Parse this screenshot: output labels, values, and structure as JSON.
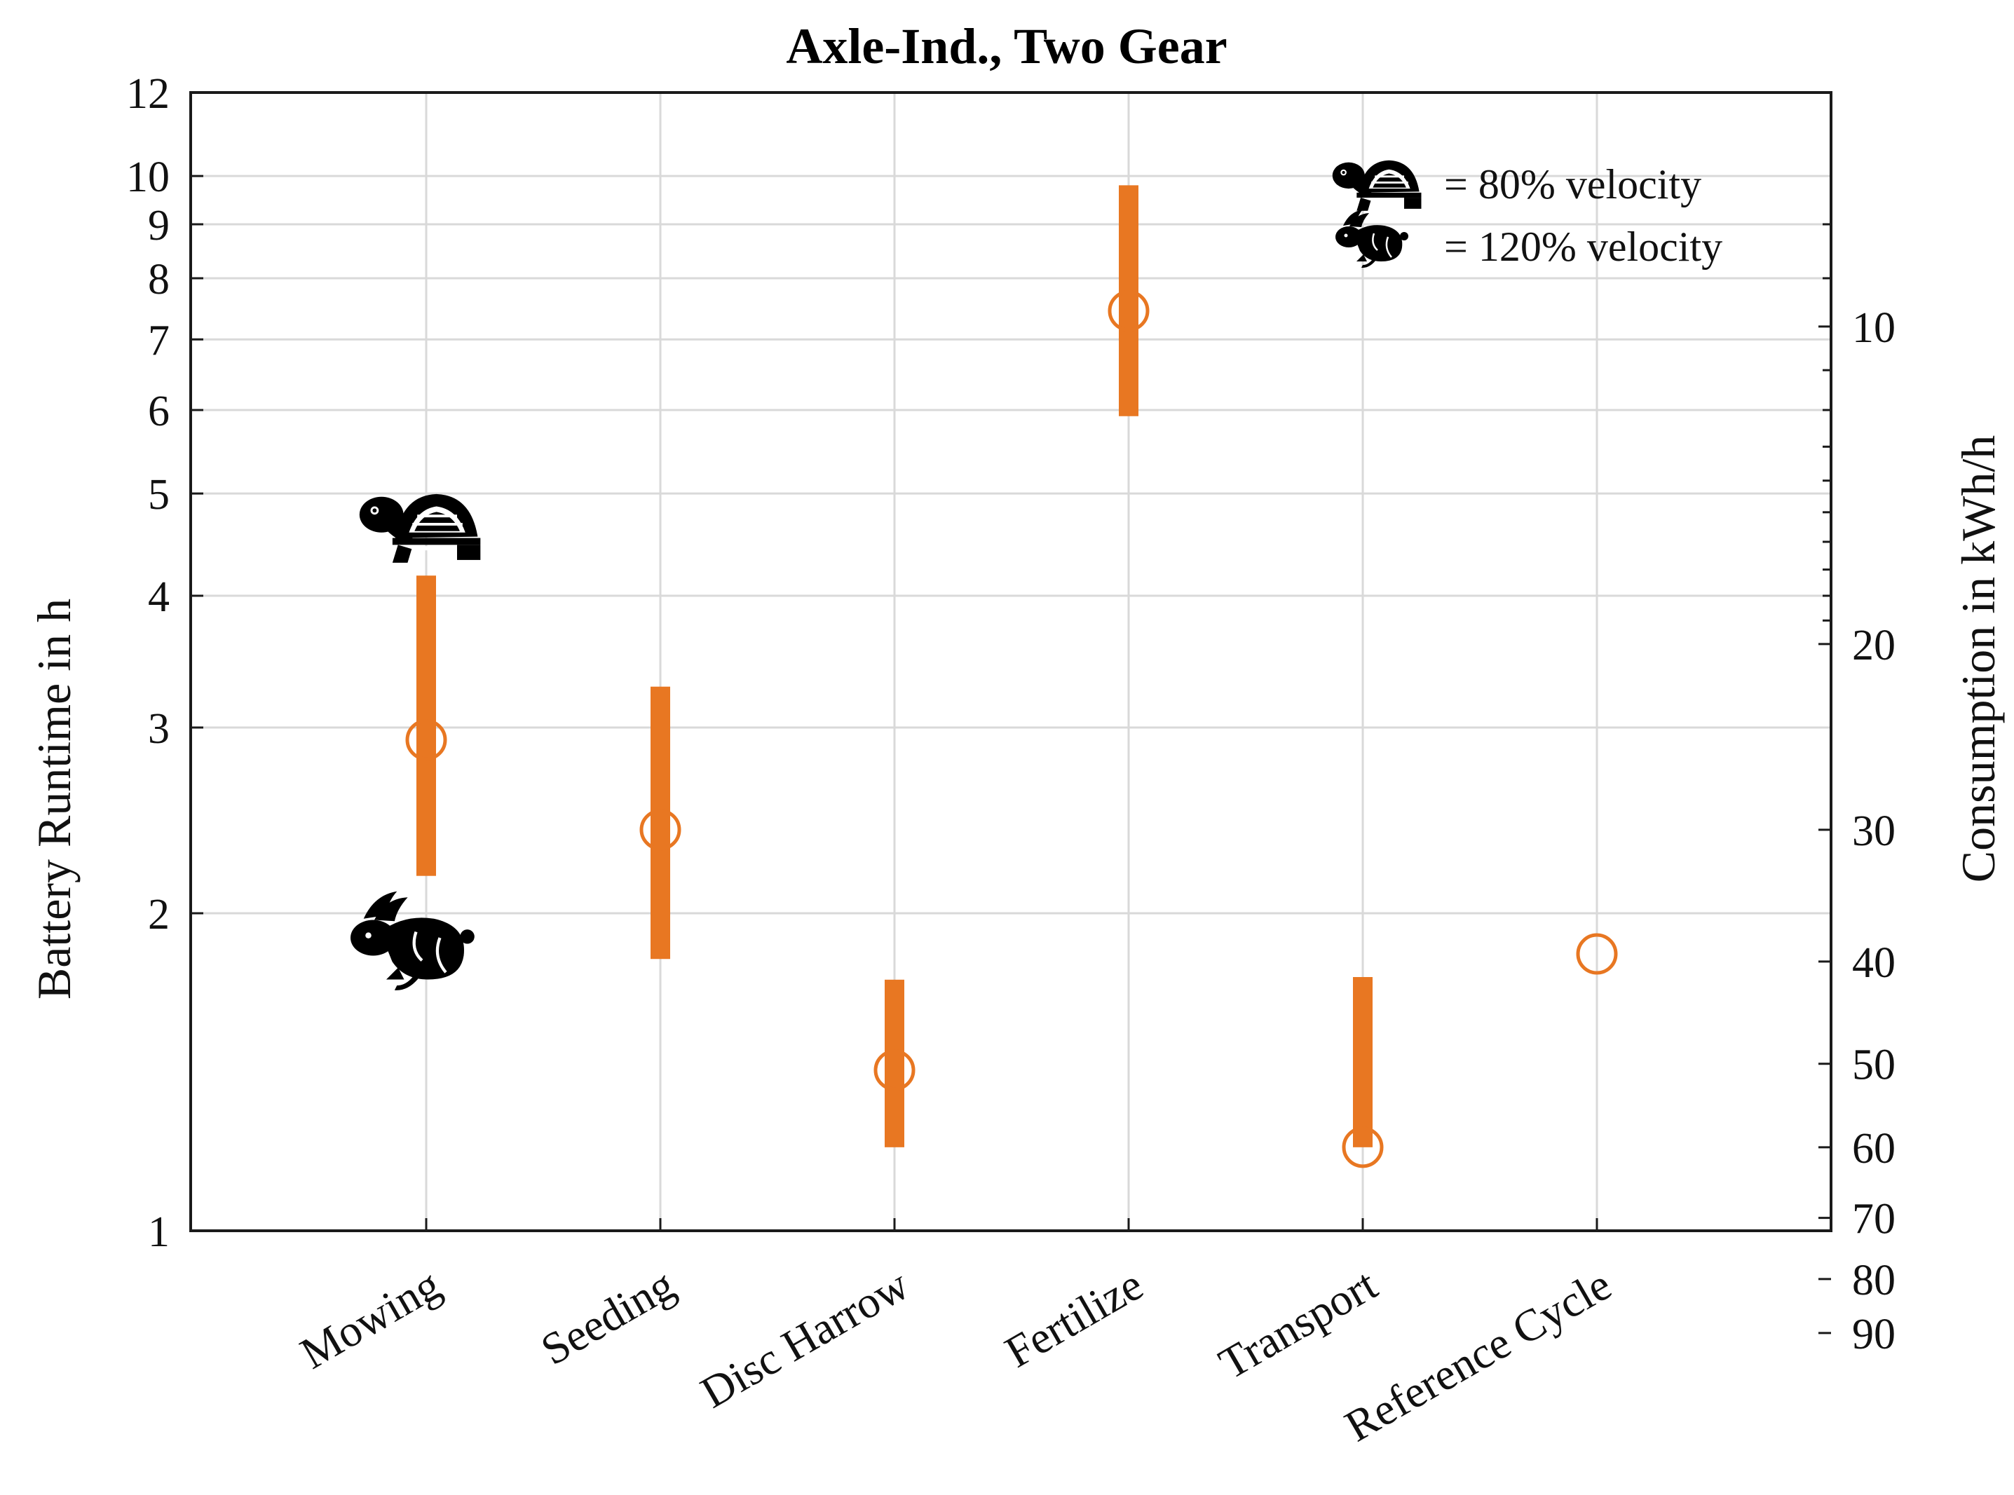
{
  "chart_data": {
    "type": "scatter",
    "title": "Axle-Ind., Two Gear",
    "ylabel": "Battery Runtime in h",
    "y2label": "Consumption in kWh/h",
    "yscale": "log",
    "ylim": [
      1,
      12
    ],
    "yticks": [
      1,
      2,
      3,
      4,
      5,
      6,
      7,
      8,
      9,
      10,
      12
    ],
    "y2ticks": [
      10,
      20,
      30,
      40,
      50,
      60,
      70,
      80,
      90
    ],
    "y2_relation": "runtime_h = 72 / consumption_kWh_per_h",
    "grid": true,
    "categories": [
      "Mowing",
      "Seeding",
      "Disc Harrow",
      "Fertilize",
      "Transport",
      "Reference Cycle"
    ],
    "nominal_runtime": [
      2.92,
      2.4,
      1.42,
      7.45,
      1.2,
      1.83
    ],
    "range_low": [
      2.17,
      1.81,
      1.2,
      5.92,
      1.2,
      null
    ],
    "range_high": [
      4.18,
      3.28,
      1.73,
      9.8,
      1.74,
      null
    ],
    "legend": {
      "position": "top-right",
      "items": [
        {
          "icon": "turtle-icon",
          "label": "= 80% velocity"
        },
        {
          "icon": "rabbit-icon",
          "label": "= 120% velocity"
        }
      ]
    },
    "annotations": [
      {
        "icon": "turtle-icon",
        "category": "Mowing",
        "meaning": "80% velocity end"
      },
      {
        "icon": "rabbit-icon",
        "category": "Mowing",
        "meaning": "120% velocity end"
      }
    ],
    "colors": {
      "series": "#E87722",
      "grid": "#d9d9d9",
      "axis": "#1a1a1a"
    }
  }
}
